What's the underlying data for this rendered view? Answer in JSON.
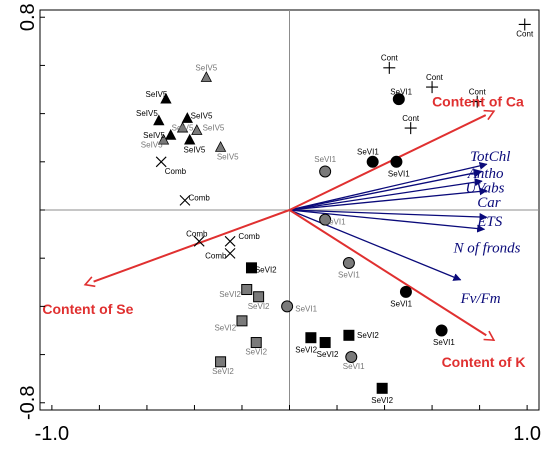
{
  "chart_data": {
    "type": "scatter",
    "subtype": "biplot",
    "title": "",
    "xlabel": "",
    "ylabel": "",
    "xlim": [
      -1.05,
      1.05
    ],
    "ylim": [
      -0.83,
      0.83
    ],
    "x_ticks": [
      {
        "value": -1.0,
        "label": "-1.0"
      },
      {
        "value": 1.0,
        "label": "1.0"
      }
    ],
    "y_ticks": [
      {
        "value": 0.8,
        "label": "0.8"
      },
      {
        "value": -0.8,
        "label": "-0.8"
      }
    ],
    "grid": false,
    "colors": {
      "frame": "#000000",
      "axis_lines": "#8c8c8c",
      "env_arrow": "#e03030",
      "species_arrow": "#0a0a7a",
      "env_label": "#e03030",
      "species_label": "#0a0a7a",
      "point_label_dark": "#000000",
      "point_label_grey": "#777777",
      "fill_dark": "#000000",
      "fill_grey": "#7a7a7a"
    },
    "env_arrows": [
      {
        "label": "Content of Ca",
        "x": 0.86,
        "y": 0.41,
        "lx": 0.6,
        "ly": 0.45
      },
      {
        "label": "Content of K",
        "x": 0.86,
        "y": -0.54,
        "lx": 0.64,
        "ly": -0.63
      },
      {
        "label": "Content of Se",
        "x": -0.86,
        "y": -0.31,
        "lx": -1.04,
        "ly": -0.41
      }
    ],
    "species_arrows": [
      {
        "label": "TotChl",
        "x": 0.83,
        "y": 0.19,
        "lx": 0.76,
        "ly": 0.22
      },
      {
        "label": "Antho",
        "x": 0.81,
        "y": 0.16,
        "lx": 0.75,
        "ly": 0.15
      },
      {
        "label": "UVabs",
        "x": 0.81,
        "y": 0.12,
        "lx": 0.74,
        "ly": 0.09
      },
      {
        "label": "Car",
        "x": 0.83,
        "y": 0.08,
        "lx": 0.79,
        "ly": 0.03
      },
      {
        "label": "ETS",
        "x": 0.83,
        "y": -0.03,
        "lx": 0.79,
        "ly": -0.05
      },
      {
        "label": "N of fronds",
        "x": 0.82,
        "y": -0.08,
        "lx": 0.69,
        "ly": -0.16
      },
      {
        "label": "Fv/Fm",
        "x": 0.72,
        "y": -0.29,
        "lx": 0.72,
        "ly": -0.37
      }
    ],
    "series": [
      {
        "name": "SeVI1",
        "marker": "circle",
        "points": [
          {
            "x": 0.46,
            "y": 0.46,
            "label": "SeVI1",
            "fill": "dark",
            "label_color": "dark",
            "lx": 0.47,
            "ly": 0.49
          },
          {
            "x": 0.35,
            "y": 0.2,
            "label": "SeVI1",
            "fill": "dark",
            "label_color": "dark",
            "lx": 0.33,
            "ly": 0.24
          },
          {
            "x": 0.45,
            "y": 0.2,
            "label": "SeVI1",
            "fill": "dark",
            "label_color": "dark",
            "lx": 0.46,
            "ly": 0.15
          },
          {
            "x": 0.15,
            "y": 0.16,
            "label": "SeVI1",
            "fill": "grey",
            "label_color": "grey",
            "lx": 0.15,
            "ly": 0.21
          },
          {
            "x": 0.15,
            "y": -0.04,
            "label": "SeVI1",
            "fill": "grey",
            "label_color": "grey",
            "lx": 0.19,
            "ly": -0.05
          },
          {
            "x": 0.25,
            "y": -0.22,
            "label": "SeVI1",
            "fill": "grey",
            "label_color": "grey",
            "lx": 0.25,
            "ly": -0.27
          },
          {
            "x": 0.49,
            "y": -0.34,
            "label": "SeVI1",
            "fill": "dark",
            "label_color": "dark",
            "lx": 0.47,
            "ly": -0.39
          },
          {
            "x": -0.01,
            "y": -0.4,
            "label": "SeVI1",
            "fill": "grey",
            "label_color": "grey",
            "lx": 0.07,
            "ly": -0.41
          },
          {
            "x": 0.64,
            "y": -0.5,
            "label": "SeVI1",
            "fill": "dark",
            "label_color": "dark",
            "lx": 0.65,
            "ly": -0.55
          },
          {
            "x": 0.26,
            "y": -0.61,
            "label": "SeVI1",
            "fill": "grey",
            "label_color": "grey",
            "lx": 0.27,
            "ly": -0.65
          }
        ]
      },
      {
        "name": "SeIV5",
        "marker": "triangle",
        "points": [
          {
            "x": -0.52,
            "y": 0.46,
            "label": "SeIV5",
            "fill": "dark",
            "label_color": "dark",
            "lx": -0.56,
            "ly": 0.48
          },
          {
            "x": -0.35,
            "y": 0.55,
            "label": "SeIV5",
            "fill": "grey",
            "label_color": "grey",
            "lx": -0.35,
            "ly": 0.59
          },
          {
            "x": -0.55,
            "y": 0.37,
            "label": "SeIV5",
            "fill": "dark",
            "label_color": "dark",
            "lx": -0.6,
            "ly": 0.4
          },
          {
            "x": -0.43,
            "y": 0.38,
            "label": "SeIV5",
            "fill": "dark",
            "label_color": "dark",
            "lx": -0.37,
            "ly": 0.39
          },
          {
            "x": -0.45,
            "y": 0.34,
            "label": "SeIV5",
            "fill": "grey",
            "label_color": "grey",
            "lx": -0.45,
            "ly": 0.34
          },
          {
            "x": -0.39,
            "y": 0.33,
            "label": "SeIV5",
            "fill": "grey",
            "label_color": "grey",
            "lx": -0.32,
            "ly": 0.34
          },
          {
            "x": -0.5,
            "y": 0.31,
            "label": "SeIV5",
            "fill": "dark",
            "label_color": "dark",
            "lx": -0.57,
            "ly": 0.31
          },
          {
            "x": -0.53,
            "y": 0.29,
            "label": "SeIV5",
            "fill": "grey",
            "label_color": "grey",
            "lx": -0.58,
            "ly": 0.27
          },
          {
            "x": -0.42,
            "y": 0.29,
            "label": "SeIV5",
            "fill": "dark",
            "label_color": "dark",
            "lx": -0.4,
            "ly": 0.25
          },
          {
            "x": -0.29,
            "y": 0.26,
            "label": "SeIV5",
            "fill": "grey",
            "label_color": "grey",
            "lx": -0.26,
            "ly": 0.22
          }
        ]
      },
      {
        "name": "SeVI2",
        "marker": "square",
        "points": [
          {
            "x": -0.16,
            "y": -0.24,
            "label": "SeVI2",
            "fill": "dark",
            "label_color": "dark",
            "lx": -0.1,
            "ly": -0.25
          },
          {
            "x": -0.18,
            "y": -0.33,
            "label": "SeVI2",
            "fill": "grey",
            "label_color": "grey",
            "lx": -0.25,
            "ly": -0.35
          },
          {
            "x": -0.13,
            "y": -0.36,
            "label": "SeVI2",
            "fill": "grey",
            "label_color": "grey",
            "lx": -0.13,
            "ly": -0.4
          },
          {
            "x": -0.2,
            "y": -0.46,
            "label": "SeVI2",
            "fill": "grey",
            "label_color": "grey",
            "lx": -0.27,
            "ly": -0.49
          },
          {
            "x": -0.14,
            "y": -0.55,
            "label": "SeVI2",
            "fill": "grey",
            "label_color": "grey",
            "lx": -0.14,
            "ly": -0.59
          },
          {
            "x": -0.29,
            "y": -0.63,
            "label": "SeVI2",
            "fill": "grey",
            "label_color": "grey",
            "lx": -0.28,
            "ly": -0.67
          },
          {
            "x": 0.09,
            "y": -0.53,
            "label": "SeVI2",
            "fill": "dark",
            "label_color": "dark",
            "lx": 0.07,
            "ly": -0.58
          },
          {
            "x": 0.15,
            "y": -0.55,
            "label": "SeVI2",
            "fill": "dark",
            "label_color": "dark",
            "lx": 0.16,
            "ly": -0.6
          },
          {
            "x": 0.25,
            "y": -0.52,
            "label": "SeVI2",
            "fill": "dark",
            "label_color": "dark",
            "lx": 0.33,
            "ly": -0.52
          },
          {
            "x": 0.39,
            "y": -0.74,
            "label": "SeVI2",
            "fill": "dark",
            "label_color": "dark",
            "lx": 0.39,
            "ly": -0.79
          }
        ]
      },
      {
        "name": "Cont",
        "marker": "plus",
        "points": [
          {
            "x": 0.99,
            "y": 0.77,
            "label": "Cont",
            "lx": 0.99,
            "ly": 0.73
          },
          {
            "x": 0.42,
            "y": 0.59,
            "label": "Cont",
            "lx": 0.42,
            "ly": 0.63
          },
          {
            "x": 0.6,
            "y": 0.51,
            "label": "Cont",
            "lx": 0.61,
            "ly": 0.55
          },
          {
            "x": 0.79,
            "y": 0.45,
            "label": "Cont",
            "lx": 0.79,
            "ly": 0.49
          },
          {
            "x": 0.51,
            "y": 0.34,
            "label": "Cont",
            "lx": 0.51,
            "ly": 0.38
          }
        ]
      },
      {
        "name": "Comb",
        "marker": "cross",
        "points": [
          {
            "x": -0.54,
            "y": 0.2,
            "label": "Comb",
            "lx": -0.48,
            "ly": 0.16
          },
          {
            "x": -0.44,
            "y": 0.04,
            "label": "Comb",
            "lx": -0.38,
            "ly": 0.05
          },
          {
            "x": -0.38,
            "y": -0.13,
            "label": "Comb",
            "lx": -0.39,
            "ly": -0.1
          },
          {
            "x": -0.25,
            "y": -0.13,
            "label": "Comb",
            "lx": -0.17,
            "ly": -0.11
          },
          {
            "x": -0.25,
            "y": -0.18,
            "label": "Comb",
            "lx": -0.31,
            "ly": -0.19
          }
        ]
      }
    ]
  }
}
